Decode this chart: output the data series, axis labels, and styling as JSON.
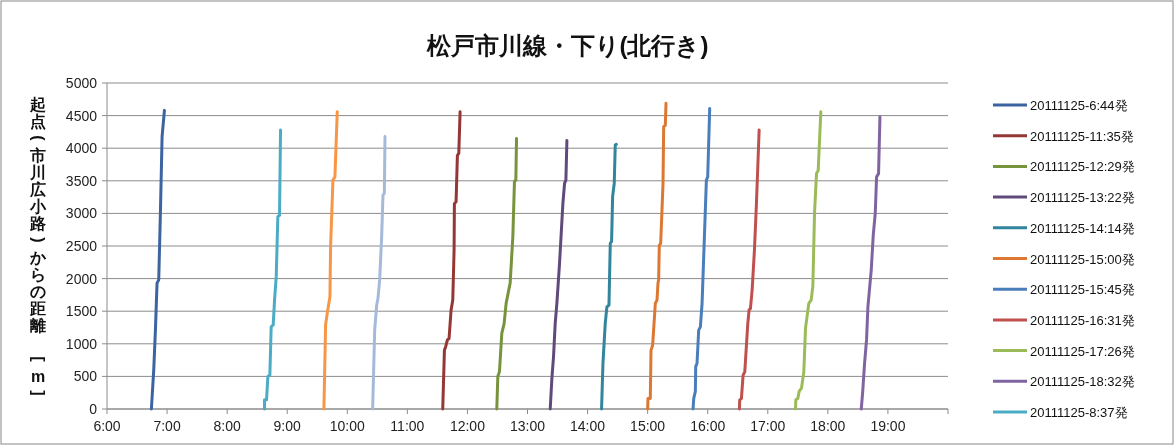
{
  "chart_data": {
    "type": "line",
    "title": "松戸市川線・下り(北行き)",
    "ylabel": "起点(市川広小路)からの距離　[m]",
    "xlim": [
      6,
      20
    ],
    "ylim": [
      0,
      5000
    ],
    "xticks": [
      {
        "value": 6,
        "label": "6:00"
      },
      {
        "value": 7,
        "label": "7:00"
      },
      {
        "value": 8,
        "label": "8:00"
      },
      {
        "value": 9,
        "label": "9:00"
      },
      {
        "value": 10,
        "label": "10:00"
      },
      {
        "value": 11,
        "label": "11:00"
      },
      {
        "value": 12,
        "label": "12:00"
      },
      {
        "value": 13,
        "label": "13:00"
      },
      {
        "value": 14,
        "label": "14:00"
      },
      {
        "value": 15,
        "label": "15:00"
      },
      {
        "value": 16,
        "label": "16:00"
      },
      {
        "value": 17,
        "label": "17:00"
      },
      {
        "value": 18,
        "label": "18:00"
      },
      {
        "value": 19,
        "label": "19:00"
      },
      {
        "value": 20,
        "label": null
      }
    ],
    "yticks": [
      0,
      500,
      1000,
      1500,
      2000,
      2500,
      3000,
      3500,
      4000,
      4500,
      5000
    ],
    "grid": "y",
    "legend": "right",
    "marker": "none",
    "line_style": "solid",
    "series": [
      {
        "name": "20111125-6:44発",
        "color": "#3c64a0",
        "x": [
          6.739,
          6.778,
          6.806,
          6.833,
          6.861,
          6.889,
          6.917,
          6.956
        ],
        "values": [
          0,
          600,
          1210,
          1930,
          1980,
          3000,
          4180,
          4580
        ]
      },
      {
        "name": "20111125-11:35発",
        "color": "#953735",
        "x": [
          11.589,
          11.617,
          11.639,
          11.667,
          11.694,
          11.728,
          11.756,
          11.778,
          11.783,
          11.811,
          11.833,
          11.856,
          11.878
        ],
        "values": [
          0,
          900,
          960,
          1060,
          1080,
          1520,
          1670,
          2440,
          3150,
          3180,
          3890,
          3920,
          4560
        ]
      },
      {
        "name": "20111125-12:29発",
        "color": "#77933c",
        "x": [
          12.489,
          12.506,
          12.533,
          12.572,
          12.611,
          12.644,
          12.711,
          12.756,
          12.783,
          12.806,
          12.817
        ],
        "values": [
          0,
          500,
          570,
          1160,
          1310,
          1620,
          1930,
          2640,
          3490,
          3510,
          4150
        ]
      },
      {
        "name": "20111125-13:22発",
        "color": "#604a7b",
        "x": [
          13.378,
          13.406,
          13.433,
          13.461,
          13.489,
          13.533,
          13.589,
          13.617,
          13.639,
          13.656
        ],
        "values": [
          0,
          470,
          800,
          1310,
          1620,
          2230,
          3150,
          3460,
          3510,
          4120
        ]
      },
      {
        "name": "20111125-14:14発",
        "color": "#31859c",
        "x": [
          14.233,
          14.256,
          14.294,
          14.322,
          14.356,
          14.378,
          14.4,
          14.417,
          14.444,
          14.461,
          14.478
        ],
        "values": [
          0,
          700,
          1310,
          1570,
          1590,
          2540,
          2570,
          3260,
          3460,
          4050,
          4060
        ]
      },
      {
        "name": "20111125-15:00発",
        "color": "#dc7832",
        "x": [
          15.0,
          15.006,
          15.044,
          15.056,
          15.083,
          15.128,
          15.156,
          15.172,
          15.183,
          15.194,
          15.217,
          15.256,
          15.267,
          15.294,
          15.306
        ],
        "values": [
          0,
          160,
          160,
          900,
          980,
          1620,
          1670,
          1930,
          1980,
          2510,
          2540,
          3460,
          4330,
          4350,
          4690
        ]
      },
      {
        "name": "20111125-15:45発",
        "color": "#4a7ebb",
        "x": [
          15.756,
          15.767,
          15.794,
          15.8,
          15.822,
          15.85,
          15.878,
          15.906,
          15.978,
          16.0,
          16.033
        ],
        "values": [
          0,
          160,
          270,
          650,
          700,
          1210,
          1260,
          1620,
          3510,
          3560,
          4610
        ]
      },
      {
        "name": "20111125-16:31発",
        "color": "#c0504d",
        "x": [
          16.528,
          16.533,
          16.561,
          16.589,
          16.617,
          16.667,
          16.689,
          16.711,
          16.739,
          16.778,
          16.811,
          16.856
        ],
        "values": [
          0,
          140,
          160,
          520,
          570,
          1310,
          1520,
          1540,
          1820,
          2440,
          3150,
          4280
        ]
      },
      {
        "name": "20111125-17:26発",
        "color": "#9bbb59",
        "x": [
          17.461,
          17.467,
          17.5,
          17.522,
          17.561,
          17.6,
          17.628,
          17.683,
          17.722,
          17.75,
          17.778,
          17.811,
          17.839,
          17.883
        ],
        "values": [
          0,
          140,
          160,
          270,
          320,
          570,
          1240,
          1620,
          1670,
          1880,
          3000,
          3610,
          3660,
          4560
        ]
      },
      {
        "name": "20111125-18:32発",
        "color": "#8064a2",
        "x": [
          18.556,
          18.578,
          18.611,
          18.644,
          18.667,
          18.722,
          18.756,
          18.789,
          18.811,
          18.844,
          18.867
        ],
        "values": [
          0,
          240,
          700,
          1060,
          1570,
          2130,
          2670,
          3000,
          3560,
          3610,
          4480
        ]
      },
      {
        "name": "20111125-8:37発",
        "color": "#4bacc6",
        "x": [
          8.622,
          8.622,
          8.656,
          8.678,
          8.711,
          8.733,
          8.767,
          8.789,
          8.817,
          8.844,
          8.872,
          8.889
        ],
        "values": [
          0,
          140,
          140,
          500,
          520,
          1260,
          1290,
          1670,
          2030,
          2950,
          2970,
          4280
        ]
      },
      {
        "color": "#f79646",
        "x": [
          9.611,
          9.639,
          9.667,
          9.711,
          9.722,
          9.761,
          9.794,
          9.833
        ],
        "values": [
          0,
          1290,
          1470,
          1720,
          2490,
          3510,
          3560,
          4560
        ]
      },
      {
        "color": "#a5b9d9",
        "x": [
          10.422,
          10.456,
          10.489,
          10.511,
          10.539,
          10.572,
          10.594,
          10.617,
          10.628
        ],
        "values": [
          0,
          1210,
          1590,
          1700,
          1980,
          2640,
          3280,
          3310,
          4180
        ]
      }
    ]
  }
}
